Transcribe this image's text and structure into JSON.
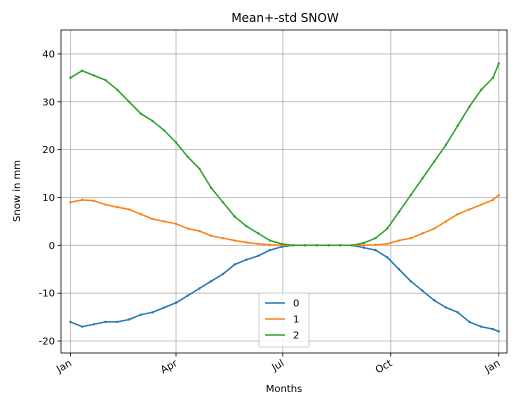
{
  "chart_data": {
    "type": "line",
    "title": "Mean+-std   SNOW",
    "xlabel": "Months",
    "ylabel": "Snow in mm",
    "x_unit": "day of year",
    "xlim": [
      -8,
      372
    ],
    "ylim": [
      -22.5,
      45
    ],
    "grid": true,
    "legend_position": "lower-center",
    "x_ticks": [
      {
        "label": "Jan",
        "value": 0
      },
      {
        "label": "Apr",
        "value": 90
      },
      {
        "label": "Jul",
        "value": 181
      },
      {
        "label": "Oct",
        "value": 273
      },
      {
        "label": "Jan",
        "value": 365
      }
    ],
    "y_ticks": [
      -20,
      -10,
      0,
      10,
      20,
      30,
      40
    ],
    "x": [
      0,
      10,
      20,
      30,
      40,
      50,
      60,
      70,
      80,
      90,
      100,
      110,
      120,
      130,
      140,
      150,
      160,
      170,
      180,
      190,
      200,
      210,
      220,
      230,
      240,
      250,
      260,
      270,
      280,
      290,
      300,
      310,
      320,
      330,
      340,
      350,
      360,
      365
    ],
    "series": [
      {
        "name": "0",
        "color": "#1f77b4",
        "values": [
          -16,
          -17,
          -16.5,
          -16,
          -16,
          -15.5,
          -14.5,
          -14,
          -13,
          -12,
          -10.5,
          -9,
          -7.5,
          -6,
          -4,
          -3,
          -2.2,
          -1,
          -0.3,
          0,
          0,
          0,
          0,
          0,
          0,
          -0.5,
          -1,
          -2.5,
          -5,
          -7.5,
          -9.5,
          -11.5,
          -13,
          -14,
          -16,
          -17,
          -17.5,
          -18
        ]
      },
      {
        "name": "1",
        "color": "#ff7f0e",
        "values": [
          9,
          9.5,
          9.3,
          8.5,
          8,
          7.5,
          6.5,
          5.5,
          5,
          4.5,
          3.5,
          3,
          2,
          1.5,
          1,
          0.6,
          0.3,
          0.1,
          0,
          0,
          0,
          0,
          0,
          0,
          0,
          0,
          0.1,
          0.3,
          1,
          1.5,
          2.5,
          3.5,
          5,
          6.5,
          7.5,
          8.5,
          9.5,
          10.5
        ]
      },
      {
        "name": "2",
        "color": "#2ca02c",
        "values": [
          35,
          36.5,
          35.5,
          34.5,
          32.5,
          30,
          27.5,
          26,
          24,
          21.5,
          18.5,
          16,
          12,
          9,
          6,
          4,
          2.5,
          1,
          0.3,
          0,
          0,
          0,
          0,
          0,
          0,
          0.5,
          1.5,
          3.5,
          7,
          10.5,
          14,
          17.5,
          21,
          25,
          29,
          32.5,
          35,
          38
        ]
      }
    ]
  }
}
